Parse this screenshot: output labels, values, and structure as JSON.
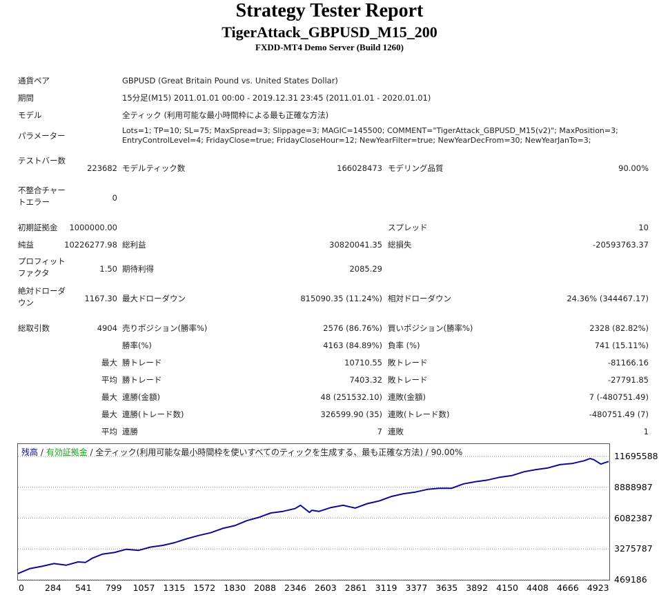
{
  "header": {
    "title": "Strategy Tester Report",
    "subtitle": "TigerAttack_GBPUSD_M15_200",
    "server": "FXDD-MT4 Demo Server (Build 1260)"
  },
  "info": {
    "symbol_label": "通貨ペア",
    "symbol_value": "GBPUSD (Great Britain Pound vs. United States Dollar)",
    "period_label": "期間",
    "period_value": "15分足(M15) 2011.01.01 00:00 - 2019.12.31 23:45 (2011.01.01 - 2020.01.01)",
    "model_label": "モデル",
    "model_value": "全ティック (利用可能な最小時間枠による最も正確な方法)",
    "params_label": "パラメーター",
    "params_line1": "Lots=1; TP=10; SL=75; MaxSpread=3; Slippage=3; MAGIC=145500; COMMENT=\"TigerAttack_GBPUSD_M15(v2)\"; MaxPosition=3;",
    "params_line2": "EntryControlLevel=4; FridayClose=true; FridayCloseHour=12; NewYearFilter=true; NewYearDecFrom=30; NewYearJanTo=3;"
  },
  "stats": {
    "bars_label": "テストバー数",
    "bars_value": "223682",
    "ticks_label": "モデルティック数",
    "ticks_value": "166028473",
    "quality_label": "モデリング品質",
    "quality_value": "90.00%",
    "mismatch_label": "不整合チャートエラー",
    "mismatch_value": "0",
    "deposit_label": "初期証拠金",
    "deposit_value": "1000000.00",
    "spread_label": "スプレッド",
    "spread_value": "10",
    "net_label": "純益",
    "net_value": "10226277.98",
    "gross_profit_label": "総利益",
    "gross_profit_value": "30820041.35",
    "gross_loss_label": "総損失",
    "gross_loss_value": "-20593763.37",
    "pf_label": "プロフィットファクタ",
    "pf_value": "1.50",
    "payoff_label": "期待利得",
    "payoff_value": "2085.29",
    "abs_dd_label": "絶対ドローダウン",
    "abs_dd_value": "1167.30",
    "max_dd_label": "最大ドローダウン",
    "max_dd_value": "815090.35 (11.24%)",
    "rel_dd_label": "相対ドローダウン",
    "rel_dd_value": "24.36% (344467.17)",
    "total_trades_label": "総取引数",
    "total_trades_value": "4904",
    "short_label": "売りポジション(勝率%)",
    "short_value": "2576 (86.76%)",
    "long_label": "買いポジション(勝率%)",
    "long_value": "2328 (82.82%)",
    "win_label": "勝率(%)",
    "win_value": "4163 (84.89%)",
    "loss_label": "負率 (%)",
    "loss_value": "741 (15.11%)",
    "largest_label": "最大",
    "largest_win_label": "勝トレード",
    "largest_win_value": "10710.55",
    "largest_loss_label": "敗トレード",
    "largest_loss_value": "-81166.16",
    "average_label": "平均",
    "avg_win_label": "勝トレード",
    "avg_win_value": "7403.32",
    "avg_loss_label": "敗トレード",
    "avg_loss_value": "-27791.85",
    "max1_label": "最大",
    "cons_wins_amt_label": "連勝(金額)",
    "cons_wins_amt_value": "48 (251532.10)",
    "cons_loss_amt_label": "連敗(金額)",
    "cons_loss_amt_value": "7 (-480751.49)",
    "max2_label": "最大",
    "cons_wins_cnt_label": "連勝(トレード数)",
    "cons_wins_cnt_value": "326599.90 (35)",
    "cons_loss_cnt_label": "連敗(トレード数)",
    "cons_loss_cnt_value": "-480751.49 (7)",
    "avg2_label": "平均",
    "avg_cons_win_label": "連勝",
    "avg_cons_win_value": "7",
    "avg_cons_loss_label": "連敗",
    "avg_cons_loss_value": "1"
  },
  "chart_legend": {
    "balance": "残高",
    "sep1": " / ",
    "equity": "有効証拠金",
    "rest": " / 全ティック(利用可能な最小時間枠を使いすべてのティックを生成する、最も正確な方法) / 90.00%"
  },
  "colors": {
    "balance": "#0a0a96",
    "equity": "#1f9a1f",
    "grid": "#8a8a8a"
  },
  "chart_data": {
    "type": "line",
    "xlabel": "",
    "ylabel": "",
    "x_ticks": [
      "0",
      "284",
      "541",
      "799",
      "1057",
      "1315",
      "1572",
      "1830",
      "2088",
      "2346",
      "2603",
      "2861",
      "3119",
      "3377",
      "3635",
      "3892",
      "4150",
      "4408",
      "4666",
      "4923"
    ],
    "y_ticks": [
      "11695588",
      "8888987",
      "6082387",
      "3275787",
      "469186"
    ],
    "ylim": [
      469186,
      11695588
    ],
    "xlim": [
      0,
      4904
    ],
    "grid": true,
    "series": [
      {
        "name": "残高",
        "x": [
          0,
          100,
          200,
          300,
          400,
          500,
          560,
          620,
          700,
          800,
          900,
          1000,
          1100,
          1200,
          1300,
          1400,
          1500,
          1600,
          1700,
          1800,
          1900,
          2000,
          2100,
          2200,
          2300,
          2346,
          2420,
          2440,
          2500,
          2600,
          2700,
          2800,
          2900,
          3000,
          3100,
          3200,
          3300,
          3400,
          3500,
          3600,
          3700,
          3800,
          3900,
          4000,
          4100,
          4200,
          4300,
          4400,
          4500,
          4600,
          4700,
          4750,
          4780,
          4840,
          4904
        ],
        "values": [
          1040000,
          1500000,
          1700000,
          1950000,
          1800000,
          2100000,
          2050000,
          2450000,
          2800000,
          2950000,
          3250000,
          3150000,
          3450000,
          3600000,
          3850000,
          4200000,
          4500000,
          4750000,
          5150000,
          5400000,
          5850000,
          6150000,
          6550000,
          6700000,
          6950000,
          7250000,
          6600000,
          6800000,
          6700000,
          7050000,
          7250000,
          7000000,
          7400000,
          7650000,
          8050000,
          8300000,
          8450000,
          8700000,
          8800000,
          8800000,
          9200000,
          9400000,
          9550000,
          9800000,
          9950000,
          10300000,
          10500000,
          10650000,
          10950000,
          11050000,
          11300000,
          11500000,
          11400000,
          11000000,
          11240000
        ]
      }
    ]
  }
}
